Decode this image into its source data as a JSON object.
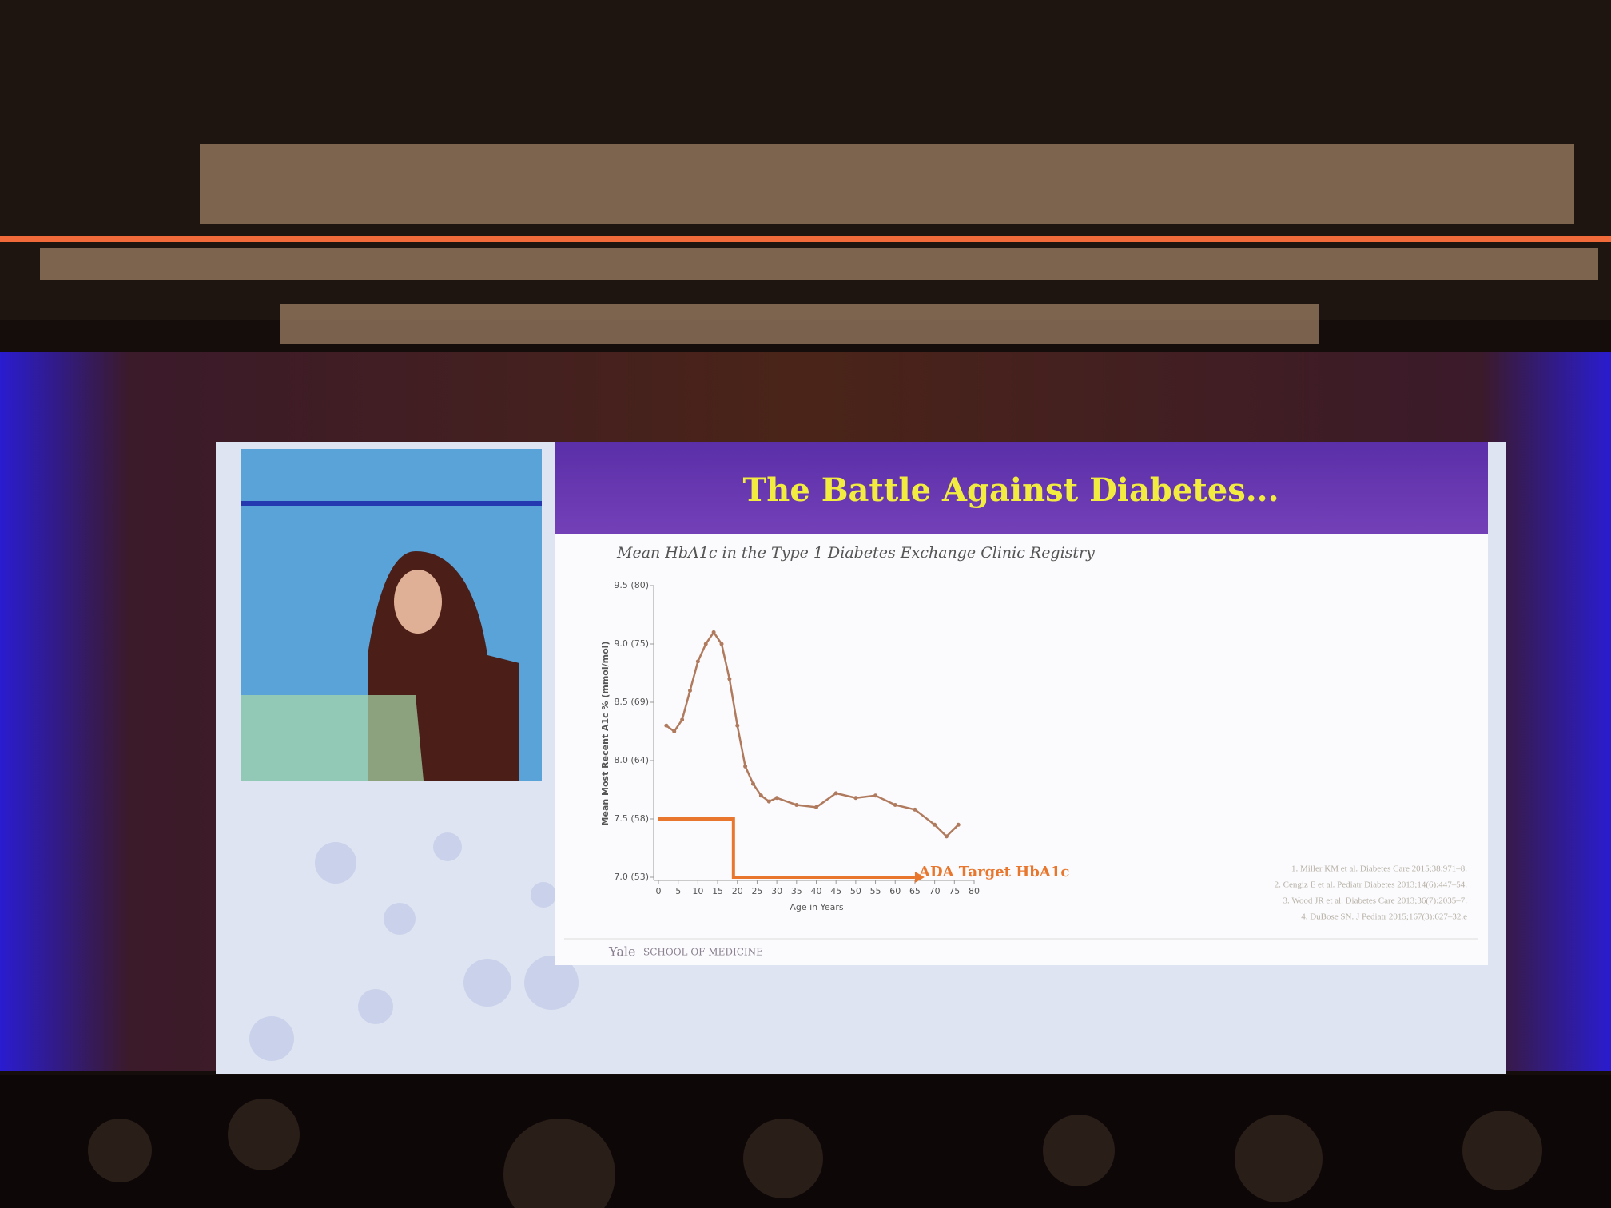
{
  "chart_data": {
    "type": "line",
    "title": "The Battle Against Diabetes...",
    "subtitle": "Mean HbA1c in the Type 1 Diabetes Exchange Clinic Registry",
    "x_label": "Age in Years",
    "y_label": "Mean Most Recent A1c % (mmol/mol)",
    "x": [
      2,
      4,
      6,
      8,
      10,
      12,
      14,
      16,
      18,
      20,
      22,
      24,
      26,
      28,
      30,
      35,
      40,
      45,
      50,
      55,
      60,
      65,
      70,
      73,
      76
    ],
    "values": [
      8.3,
      8.25,
      8.35,
      8.6,
      8.85,
      9.0,
      9.1,
      9.0,
      8.7,
      8.3,
      7.95,
      7.8,
      7.7,
      7.65,
      7.68,
      7.62,
      7.6,
      7.72,
      7.68,
      7.7,
      7.62,
      7.58,
      7.45,
      7.35,
      7.45
    ],
    "color": "#b07a5e",
    "xlim": [
      0,
      80
    ],
    "xticks": [
      0,
      5,
      10,
      15,
      20,
      25,
      30,
      35,
      40,
      45,
      50,
      55,
      60,
      65,
      70,
      75,
      80
    ],
    "ylim": [
      7.0,
      9.5
    ],
    "yticks": [
      {
        "value": 7.0,
        "label": "7.0 (53)"
      },
      {
        "value": 7.5,
        "label": "7.5 (58)"
      },
      {
        "value": 8.0,
        "label": "8.0 (64)"
      },
      {
        "value": 8.5,
        "label": "8.5 (69)"
      },
      {
        "value": 9.0,
        "label": "9.0 (75)"
      },
      {
        "value": 9.5,
        "label": "9.5 (80)"
      }
    ],
    "target": {
      "label": "ADA Target HbA1c",
      "color": "#e8762c",
      "x": [
        0,
        19,
        19,
        65
      ],
      "values": [
        7.5,
        7.5,
        7.0,
        7.0
      ]
    }
  },
  "references": [
    "1. Miller KM et al. Diabetes Care 2015;38:971–8.",
    "2. Cengiz E et al. Pediatr Diabetes 2013;14(6):447–54.",
    "3. Wood JR et al. Diabetes Care 2013;36(7):2035–7.",
    "4. DuBose SN. J Pediatr 2015;167(3):627–32.e"
  ],
  "footer": {
    "name": "Yale",
    "school": "SCHOOL OF MEDICINE"
  }
}
